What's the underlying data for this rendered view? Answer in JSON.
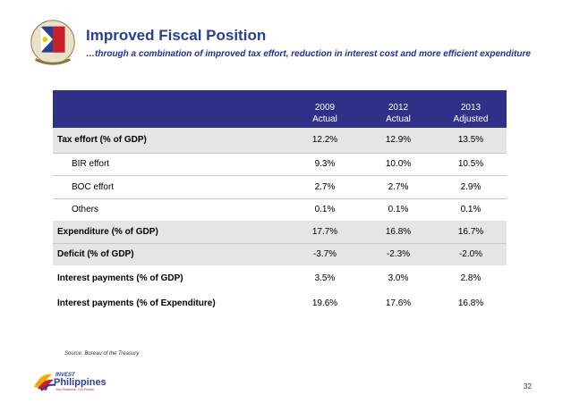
{
  "header": {
    "title": "Improved Fiscal Position",
    "subtitle": "…through a combination of improved tax effort, reduction in interest cost and more efficient expenditure"
  },
  "table": {
    "columns": [
      {
        "year": "2009",
        "kind": "Actual"
      },
      {
        "year": "2012",
        "kind": "Actual"
      },
      {
        "year": "2013",
        "kind": "Adjusted"
      }
    ],
    "rows": [
      {
        "label": "Tax effort (% of GDP)",
        "values": [
          "12.2%",
          "12.9%",
          "13.5%"
        ]
      },
      {
        "label": "BIR effort",
        "values": [
          "9.3%",
          "10.0%",
          "10.5%"
        ]
      },
      {
        "label": "BOC effort",
        "values": [
          "2.7%",
          "2.7%",
          "2.9%"
        ]
      },
      {
        "label": "Others",
        "values": [
          "0.1%",
          "0.1%",
          "0.1%"
        ]
      },
      {
        "label": "Expenditure (% of GDP)",
        "values": [
          "17.7%",
          "16.8%",
          "16.7%"
        ]
      },
      {
        "label": "Deficit (% of GDP)",
        "values": [
          "-3.7%",
          "-2.3%",
          "-2.0%"
        ]
      },
      {
        "label": "Interest payments (% of GDP)",
        "values": [
          "3.5%",
          "3.0%",
          "2.8%"
        ]
      },
      {
        "label": "Interest payments (% of Expenditure)",
        "values": [
          "19.6%",
          "17.6%",
          "16.8%"
        ]
      }
    ]
  },
  "source": "Source:  Bureau of the Treasury",
  "logo": {
    "top": "INVEST",
    "main": "Philippines",
    "tagline": "Your Business. Our People."
  },
  "page_number": "32",
  "colors": {
    "title": "#2a3f94",
    "header_bg": "#2f3189",
    "shade": "#e5e5e5"
  }
}
